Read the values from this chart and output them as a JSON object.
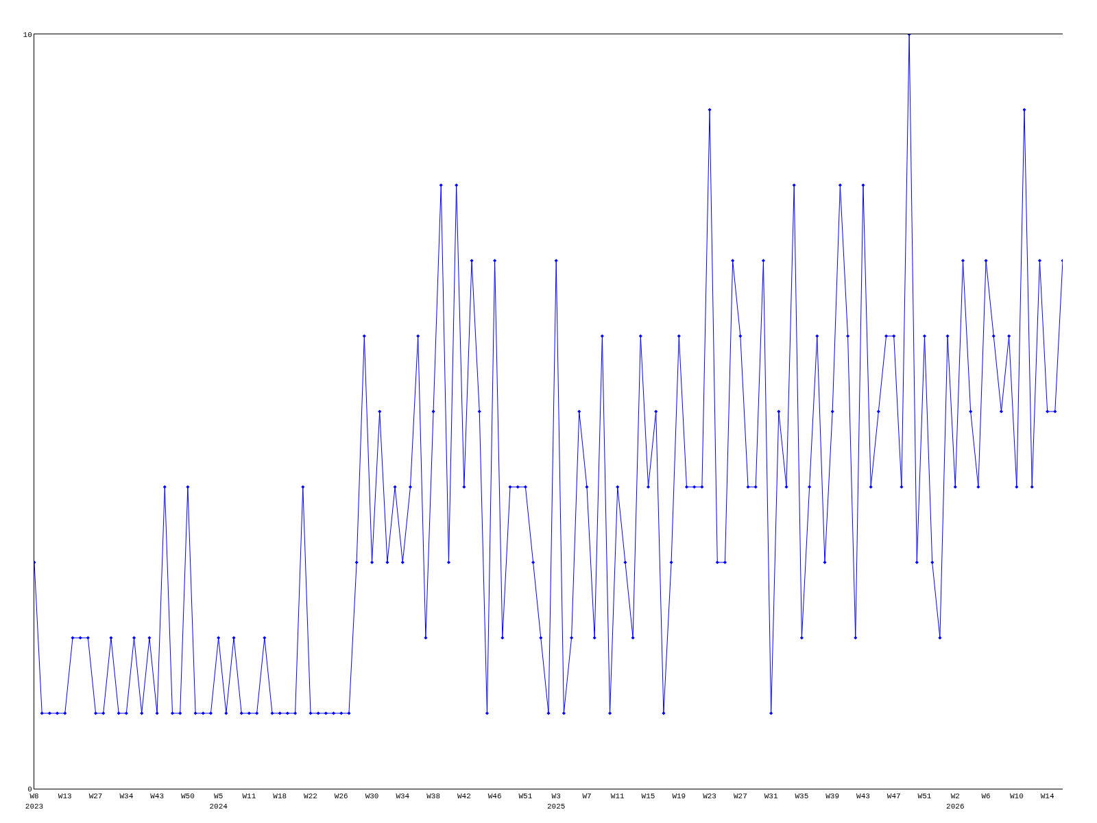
{
  "chart_data": {
    "type": "line",
    "color": "#0000ff",
    "marker": "diamond",
    "categories": [
      "W8\n2023",
      null,
      null,
      null,
      "W13",
      null,
      null,
      null,
      "W27",
      null,
      null,
      null,
      "W34",
      null,
      null,
      null,
      "W43",
      null,
      null,
      null,
      "W50",
      null,
      null,
      null,
      "W5\n2024",
      null,
      null,
      null,
      "W11",
      null,
      null,
      null,
      "W18",
      null,
      null,
      null,
      "W22",
      null,
      null,
      null,
      "W26",
      null,
      null,
      null,
      "W30",
      null,
      null,
      null,
      "W34",
      null,
      null,
      null,
      "W38",
      null,
      null,
      null,
      "W42",
      null,
      null,
      null,
      "W46",
      null,
      null,
      null,
      "W51",
      null,
      null,
      null,
      "W3\n2025",
      null,
      null,
      null,
      "W7",
      null,
      null,
      null,
      "W11",
      null,
      null,
      null,
      "W15",
      null,
      null,
      null,
      "W19",
      null,
      null,
      null,
      "W23",
      null,
      null,
      null,
      "W27",
      null,
      null,
      null,
      "W31",
      null,
      null,
      null,
      "W35",
      null,
      null,
      null,
      "W39",
      null,
      null,
      null,
      "W43",
      null,
      null,
      null,
      "W47",
      null,
      null,
      null,
      "W51",
      null,
      null,
      null,
      "W2\n2026",
      null,
      null,
      null,
      "W6",
      null,
      null,
      null,
      "W10",
      null,
      null,
      null,
      "W14",
      null,
      null
    ],
    "values": [
      3,
      1,
      1,
      1,
      1,
      2,
      2,
      2,
      1,
      1,
      2,
      1,
      1,
      2,
      1,
      2,
      1,
      4,
      1,
      1,
      4,
      1,
      1,
      1,
      2,
      1,
      2,
      1,
      1,
      1,
      2,
      1,
      1,
      1,
      1,
      4,
      1,
      1,
      1,
      1,
      1,
      1,
      3,
      6,
      3,
      5,
      3,
      4,
      3,
      4,
      6,
      2,
      5,
      8,
      3,
      8,
      4,
      7,
      5,
      1,
      7,
      2,
      4,
      4,
      4,
      3,
      2,
      1,
      7,
      1,
      2,
      5,
      4,
      2,
      6,
      1,
      4,
      3,
      2,
      6,
      4,
      5,
      1,
      3,
      6,
      4,
      4,
      4,
      9,
      3,
      3,
      7,
      6,
      4,
      4,
      7,
      1,
      5,
      4,
      8,
      2,
      4,
      6,
      3,
      5,
      8,
      6,
      2,
      8,
      4,
      5,
      6,
      6,
      4,
      10,
      3,
      6,
      3,
      2,
      6,
      4,
      7,
      5,
      4,
      7,
      6,
      5,
      6,
      4,
      9,
      4,
      7,
      5,
      5,
      7
    ],
    "ylim": [
      0,
      10
    ],
    "yticks": [
      0,
      10
    ]
  }
}
